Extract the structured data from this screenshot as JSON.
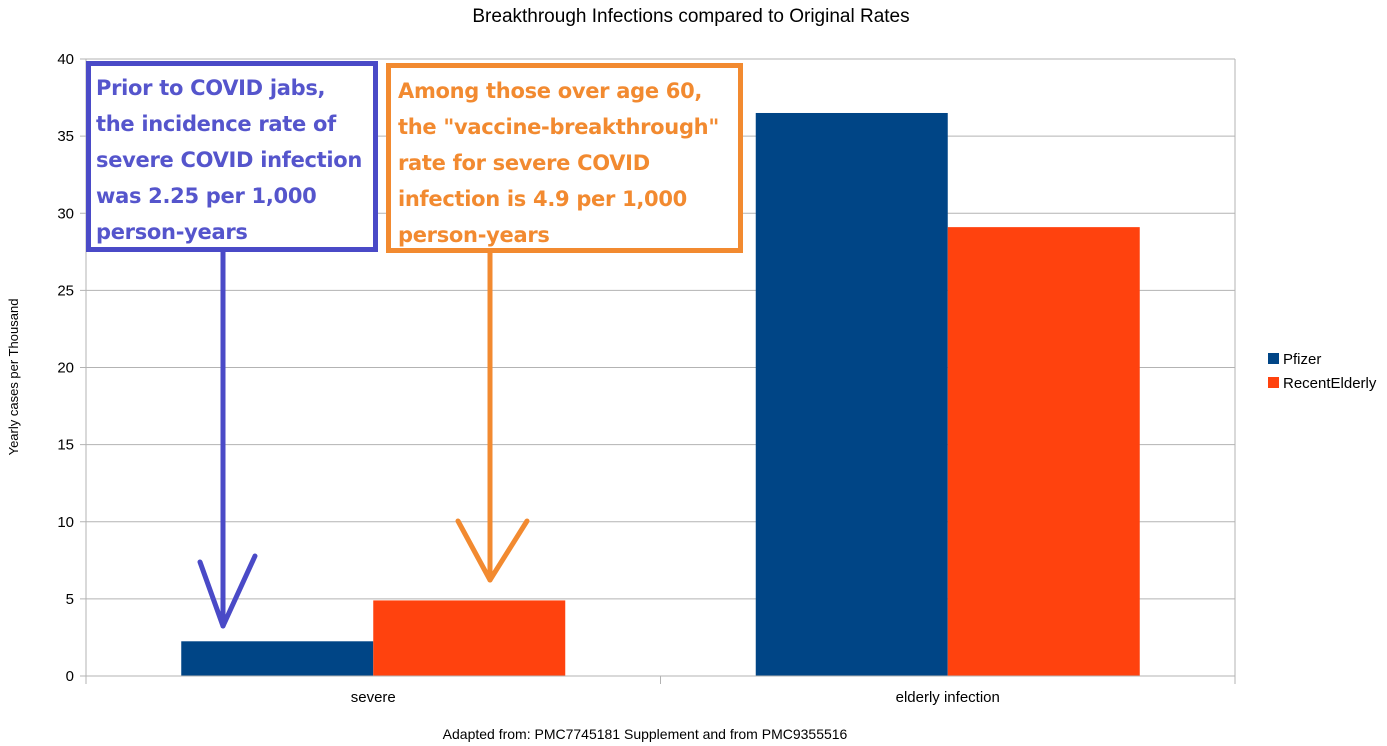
{
  "chart_data": {
    "type": "bar",
    "title": "Breakthrough Infections compared to Original Rates",
    "xlabel": "",
    "ylabel": "Yearly cases per Thousand",
    "ylim": [
      0,
      40
    ],
    "yticks": [
      "0",
      "5",
      "10",
      "15",
      "20",
      "25",
      "30",
      "35",
      "40"
    ],
    "categories": [
      "severe",
      "elderly infection"
    ],
    "series": [
      {
        "name": "Pfizer",
        "values": [
          2.25,
          36.5
        ],
        "color": "#004586"
      },
      {
        "name": "RecentElderly",
        "values": [
          4.9,
          29.1
        ],
        "color": "#ff420e"
      }
    ],
    "grid": true,
    "legend_position": "right"
  },
  "annotations": {
    "prior": {
      "text": "Prior to COVID jabs,\nthe incidence rate of\nsevere COVID infection\nwas 2.25 per 1,000\nperson-years",
      "color": "#4a4ac7"
    },
    "breakthrough": {
      "text": "Among those over age 60,\nthe \"vaccine-breakthrough\"\nrate for severe COVID\ninfection is 4.9 per 1,000\nperson-years",
      "color": "#f28a30"
    }
  },
  "footnote": "Adapted from: PMC7745181 Supplement and from PMC9355516"
}
